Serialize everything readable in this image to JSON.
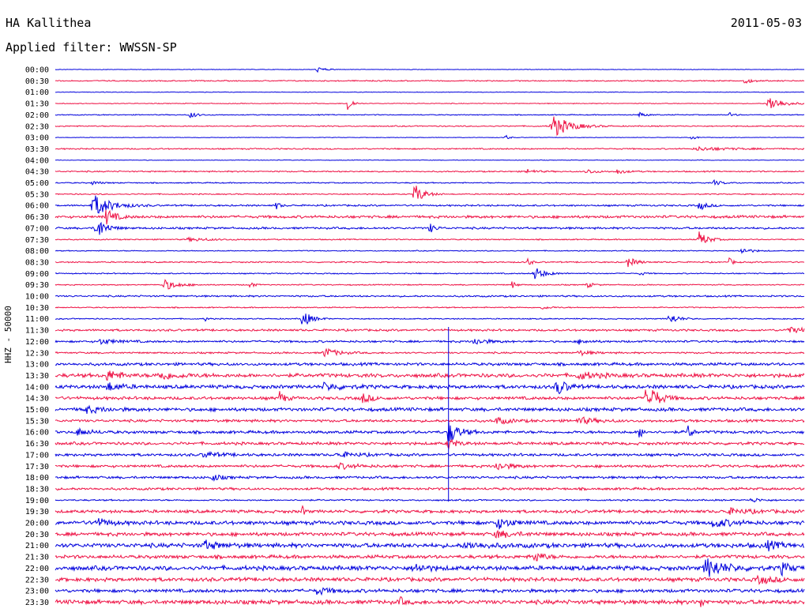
{
  "header": {
    "station": "HA Kallithea",
    "date": "2011-05-03",
    "filter": "Applied filter: WWSSN-SP"
  },
  "channel_label": "HHZ - 50000",
  "colors": {
    "even": "#0000dd",
    "odd": "#ee1144"
  },
  "chart_data": {
    "type": "line",
    "title": "HA Kallithea",
    "subtitle": "Applied filter: WWSSN-SP",
    "ylabel": "HHZ - 50000",
    "ytick_labels": [
      "00:00",
      "00:30",
      "01:00",
      "01:30",
      "02:00",
      "02:30",
      "03:00",
      "03:30",
      "04:00",
      "04:30",
      "05:00",
      "05:30",
      "06:00",
      "06:30",
      "07:00",
      "07:30",
      "08:00",
      "08:30",
      "09:00",
      "09:30",
      "10:00",
      "10:30",
      "11:00",
      "11:30",
      "12:00",
      "12:30",
      "13:00",
      "13:30",
      "14:00",
      "14:30",
      "15:00",
      "15:30",
      "16:00",
      "16:30",
      "17:00",
      "17:30",
      "18:00",
      "18:30",
      "19:00",
      "19:30",
      "20:00",
      "20:30",
      "21:00",
      "21:30",
      "22:00",
      "22:30",
      "23:00",
      "23:30"
    ],
    "series": [
      {
        "name": "00:00",
        "noise": 0.3,
        "events": [
          [
            0.35,
            3,
            0.01
          ]
        ]
      },
      {
        "name": "00:30",
        "noise": 0.6,
        "events": [
          [
            0.92,
            3,
            0.01
          ]
        ]
      },
      {
        "name": "01:00",
        "noise": 0.3,
        "events": []
      },
      {
        "name": "01:30",
        "noise": 0.4,
        "events": [
          [
            0.39,
            12,
            0.005
          ],
          [
            0.953,
            10,
            0.015
          ]
        ]
      },
      {
        "name": "02:00",
        "noise": 0.5,
        "events": [
          [
            0.18,
            4,
            0.008
          ],
          [
            0.78,
            3,
            0.008
          ],
          [
            0.9,
            3,
            0.005
          ]
        ]
      },
      {
        "name": "02:30",
        "noise": 0.6,
        "events": [
          [
            0.665,
            14,
            0.02
          ]
        ]
      },
      {
        "name": "03:00",
        "noise": 0.3,
        "events": [
          [
            0.6,
            6,
            0.003
          ],
          [
            0.85,
            3,
            0.005
          ]
        ]
      },
      {
        "name": "03:30",
        "noise": 0.7,
        "events": [
          [
            0.86,
            2,
            0.04
          ]
        ]
      },
      {
        "name": "04:00",
        "noise": 0.3,
        "events": []
      },
      {
        "name": "04:30",
        "noise": 0.7,
        "events": [
          [
            0.63,
            3,
            0.01
          ],
          [
            0.71,
            3,
            0.01
          ],
          [
            0.75,
            3,
            0.01
          ]
        ]
      },
      {
        "name": "05:00",
        "noise": 0.6,
        "events": [
          [
            0.05,
            2,
            0.01
          ],
          [
            0.88,
            3,
            0.01
          ]
        ]
      },
      {
        "name": "05:30",
        "noise": 0.6,
        "events": [
          [
            0.48,
            13,
            0.01
          ]
        ]
      },
      {
        "name": "06:00",
        "noise": 0.9,
        "events": [
          [
            0.052,
            14,
            0.02
          ],
          [
            0.295,
            5,
            0.004
          ],
          [
            0.86,
            6,
            0.008
          ]
        ]
      },
      {
        "name": "06:30",
        "noise": 1.4,
        "events": [
          [
            0.068,
            10,
            0.01
          ]
        ]
      },
      {
        "name": "07:00",
        "noise": 1.1,
        "events": [
          [
            0.055,
            15,
            0.01
          ],
          [
            0.5,
            6,
            0.006
          ]
        ]
      },
      {
        "name": "07:30",
        "noise": 0.6,
        "events": [
          [
            0.86,
            10,
            0.01
          ],
          [
            0.18,
            2,
            0.03
          ]
        ]
      },
      {
        "name": "08:00",
        "noise": 0.5,
        "events": [
          [
            0.915,
            4,
            0.012
          ]
        ]
      },
      {
        "name": "08:30",
        "noise": 0.7,
        "events": [
          [
            0.63,
            6,
            0.004
          ],
          [
            0.765,
            6,
            0.01
          ],
          [
            0.9,
            5,
            0.004
          ]
        ]
      },
      {
        "name": "09:00",
        "noise": 0.6,
        "events": [
          [
            0.64,
            8,
            0.012
          ],
          [
            0.78,
            3,
            0.005
          ]
        ]
      },
      {
        "name": "09:30",
        "noise": 0.6,
        "events": [
          [
            0.145,
            7,
            0.015
          ],
          [
            0.26,
            5,
            0.004
          ],
          [
            0.61,
            5,
            0.004
          ],
          [
            0.71,
            4,
            0.006
          ]
        ]
      },
      {
        "name": "10:00",
        "noise": 0.9,
        "events": []
      },
      {
        "name": "10:30",
        "noise": 0.6,
        "events": [
          [
            0.65,
            2,
            0.01
          ]
        ]
      },
      {
        "name": "11:00",
        "noise": 0.6,
        "events": [
          [
            0.33,
            11,
            0.01
          ],
          [
            0.82,
            7,
            0.01
          ],
          [
            0.2,
            3,
            0.003
          ]
        ]
      },
      {
        "name": "11:30",
        "noise": 1.1,
        "events": [
          [
            0.98,
            3,
            0.03
          ]
        ]
      },
      {
        "name": "12:00",
        "noise": 1.1,
        "events": [
          [
            0.06,
            3,
            0.02
          ],
          [
            0.56,
            4,
            0.015
          ],
          [
            0.7,
            3,
            0.01
          ]
        ]
      },
      {
        "name": "12:30",
        "noise": 0.9,
        "events": [
          [
            0.36,
            6,
            0.015
          ],
          [
            0.7,
            3,
            0.015
          ]
        ]
      },
      {
        "name": "13:00",
        "noise": 1.5,
        "events": []
      },
      {
        "name": "13:30",
        "noise": 2.0,
        "events": [
          [
            0.07,
            6,
            0.015
          ],
          [
            0.14,
            5,
            0.02
          ],
          [
            0.7,
            4,
            0.02
          ]
        ]
      },
      {
        "name": "14:00",
        "noise": 1.9,
        "events": [
          [
            0.07,
            5,
            0.015
          ],
          [
            0.67,
            11,
            0.01
          ],
          [
            0.36,
            4,
            0.02
          ]
        ]
      },
      {
        "name": "14:30",
        "noise": 1.6,
        "events": [
          [
            0.79,
            20,
            0.012
          ],
          [
            0.3,
            9,
            0.005
          ],
          [
            0.41,
            6,
            0.01
          ]
        ]
      },
      {
        "name": "15:00",
        "noise": 1.8,
        "events": [
          [
            0.04,
            4,
            0.02
          ]
        ]
      },
      {
        "name": "15:30",
        "noise": 1.4,
        "events": [
          [
            0.59,
            4,
            0.015
          ],
          [
            0.7,
            4,
            0.02
          ]
        ]
      },
      {
        "name": "16:00",
        "noise": 1.5,
        "events": [
          [
            0.525,
            14,
            0.012
          ],
          [
            0.78,
            8,
            0.004
          ],
          [
            0.845,
            10,
            0.004
          ],
          [
            0.03,
            4,
            0.015
          ]
        ]
      },
      {
        "name": "16:30",
        "noise": 1.5,
        "events": [
          [
            0.525,
            6,
            0.01
          ]
        ]
      },
      {
        "name": "17:00",
        "noise": 1.4,
        "events": [
          [
            0.2,
            3,
            0.02
          ],
          [
            0.38,
            3,
            0.02
          ]
        ]
      },
      {
        "name": "17:30",
        "noise": 1.4,
        "events": [
          [
            0.59,
            5,
            0.015
          ],
          [
            0.38,
            3,
            0.02
          ]
        ]
      },
      {
        "name": "18:00",
        "noise": 1.3,
        "events": [
          [
            0.21,
            4,
            0.01
          ]
        ]
      },
      {
        "name": "18:30",
        "noise": 1.3,
        "events": []
      },
      {
        "name": "19:00",
        "noise": 0.8,
        "events": [
          [
            0.93,
            3,
            0.01
          ]
        ]
      },
      {
        "name": "19:30",
        "noise": 1.6,
        "events": [
          [
            0.33,
            6,
            0.003
          ],
          [
            0.9,
            3,
            0.03
          ]
        ]
      },
      {
        "name": "20:00",
        "noise": 2.0,
        "events": [
          [
            0.055,
            5,
            0.015
          ],
          [
            0.59,
            7,
            0.015
          ],
          [
            0.88,
            5,
            0.02
          ]
        ]
      },
      {
        "name": "20:30",
        "noise": 1.9,
        "events": [
          [
            0.59,
            4,
            0.02
          ]
        ]
      },
      {
        "name": "21:00",
        "noise": 2.3,
        "events": [
          [
            0.2,
            5,
            0.015
          ],
          [
            0.55,
            3,
            0.03
          ],
          [
            0.95,
            5,
            0.015
          ]
        ]
      },
      {
        "name": "21:30",
        "noise": 1.8,
        "events": [
          [
            0.64,
            7,
            0.01
          ]
        ]
      },
      {
        "name": "22:00",
        "noise": 2.3,
        "events": [
          [
            0.87,
            12,
            0.02
          ],
          [
            0.97,
            7,
            0.01
          ],
          [
            0.48,
            5,
            0.015
          ]
        ]
      },
      {
        "name": "22:30",
        "noise": 2.0,
        "events": [
          [
            0.94,
            4,
            0.02
          ]
        ]
      },
      {
        "name": "23:00",
        "noise": 1.8,
        "events": [
          [
            0.35,
            4,
            0.015
          ]
        ]
      },
      {
        "name": "23:30",
        "noise": 2.2,
        "events": [
          [
            0.86,
            8,
            0.004
          ],
          [
            0.46,
            6,
            0.004
          ]
        ]
      }
    ],
    "vertical_glitch": {
      "x": 0.525,
      "from": "11:30",
      "to": "19:00"
    },
    "grid": false,
    "legend": "none"
  }
}
